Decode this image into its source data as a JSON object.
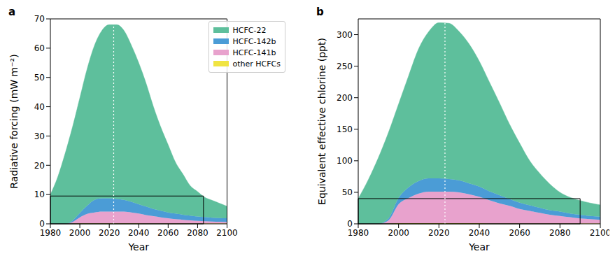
{
  "chart_data": [
    {
      "type": "area",
      "title": "a",
      "stacked": true,
      "legend": "upper right",
      "grid": false,
      "x_label": "Year",
      "y_label": "Radiative forcing (mW m⁻²)",
      "x": [
        1980,
        1985,
        1990,
        1995,
        2000,
        2005,
        2010,
        2015,
        2020,
        2025,
        2030,
        2035,
        2040,
        2045,
        2050,
        2055,
        2060,
        2065,
        2070,
        2075,
        2080,
        2085,
        2090,
        2095,
        2100
      ],
      "xlim": [
        1980,
        2100
      ],
      "xticks": [
        1980,
        2000,
        2020,
        2040,
        2060,
        2080,
        2100
      ],
      "ylim": [
        0,
        70
      ],
      "yticks": [
        0,
        10,
        20,
        30,
        40,
        50,
        60,
        70
      ],
      "vline": 2023,
      "box": {
        "x": [
          1980,
          2084
        ],
        "y": [
          0,
          9.5
        ]
      },
      "series": [
        {
          "name": "HCFC-22",
          "color": "#5ebf9c",
          "values": [
            10,
            16,
            24,
            31.9,
            39.3,
            46.8,
            52.8,
            57.3,
            59.3,
            59.5,
            57.8,
            53.5,
            48.3,
            42.1,
            34.9,
            28.5,
            23.1,
            17.5,
            13.9,
            10.2,
            8.5,
            6.7,
            5.9,
            5.0,
            4.1
          ]
        },
        {
          "name": "HCFC-142b",
          "color": "#4b9cd6",
          "values": [
            0,
            0,
            0,
            0.5,
            1.5,
            2.8,
            4.3,
            4.5,
            4.5,
            4.3,
            4,
            3.6,
            3.2,
            2.9,
            2.5,
            2.3,
            2,
            1.9,
            1.7,
            1.6,
            1.5,
            1.4,
            1.3,
            1.3,
            1.3
          ]
        },
        {
          "name": "HCFC-141b",
          "color": "#e8a2cd",
          "values": [
            0,
            0,
            0,
            0.5,
            2,
            3.2,
            3.7,
            4,
            4,
            4,
            4,
            3.7,
            3.3,
            2.9,
            2.5,
            2.1,
            1.8,
            1.5,
            1.3,
            1.1,
            0.9,
            0.8,
            0.7,
            0.6,
            0.5
          ]
        },
        {
          "name": "other HCFCs",
          "color": "#f0e442",
          "values": [
            0,
            0,
            0,
            0.1,
            0.2,
            0.2,
            0.2,
            0.2,
            0.2,
            0.2,
            0.2,
            0.2,
            0.2,
            0.1,
            0.1,
            0.1,
            0.1,
            0.1,
            0.1,
            0.1,
            0.1,
            0.1,
            0.1,
            0.1,
            0.1
          ]
        }
      ]
    },
    {
      "type": "area",
      "title": "b",
      "stacked": true,
      "grid": false,
      "x_label": "Year",
      "y_label": "Equivalent effective chlorine (ppt)",
      "x": [
        1980,
        1985,
        1990,
        1995,
        2000,
        2005,
        2010,
        2015,
        2020,
        2025,
        2030,
        2035,
        2040,
        2045,
        2050,
        2055,
        2060,
        2065,
        2070,
        2075,
        2080,
        2085,
        2090,
        2095,
        2100
      ],
      "xlim": [
        1980,
        2100
      ],
      "xticks": [
        1980,
        2000,
        2020,
        2040,
        2060,
        2080,
        2100
      ],
      "ylim": [
        0,
        325
      ],
      "yticks": [
        0,
        50,
        100,
        150,
        200,
        250,
        300
      ],
      "vline": 2023,
      "box": {
        "x": [
          1980,
          2090
        ],
        "y": [
          0,
          40
        ]
      },
      "series": [
        {
          "name": "HCFC-22",
          "color": "#5ebf9c",
          "values": [
            40,
            70,
            105,
            136.5,
            149,
            177,
            210,
            233,
            247,
            247,
            236,
            221,
            199,
            173.5,
            146.5,
            118.5,
            94.5,
            70.5,
            54.5,
            41.5,
            30.5,
            25.5,
            22.5,
            20.5,
            18.5
          ]
        },
        {
          "name": "HCFC-142b",
          "color": "#4b9cd6",
          "values": [
            0,
            0,
            0,
            3,
            10,
            17,
            20,
            21,
            21,
            20,
            19,
            17,
            16,
            14,
            13,
            11,
            10,
            9,
            8,
            7,
            7,
            6,
            6,
            5,
            5
          ]
        },
        {
          "name": "HCFC-141b",
          "color": "#e8a2cd",
          "values": [
            0,
            0,
            0,
            5,
            30,
            40,
            47,
            50,
            50,
            50,
            49,
            46,
            42,
            37,
            32,
            28,
            23,
            20,
            17,
            14,
            12,
            10,
            8,
            7,
            6
          ]
        },
        {
          "name": "other HCFCs",
          "color": "#f0e442",
          "values": [
            0,
            0,
            0,
            0.5,
            1,
            1,
            1,
            1,
            1,
            1,
            1,
            1,
            1,
            0.5,
            0.5,
            0.5,
            0.5,
            0.5,
            0.5,
            0.5,
            0.5,
            0.5,
            0.5,
            0.5,
            0.5
          ]
        }
      ]
    }
  ]
}
